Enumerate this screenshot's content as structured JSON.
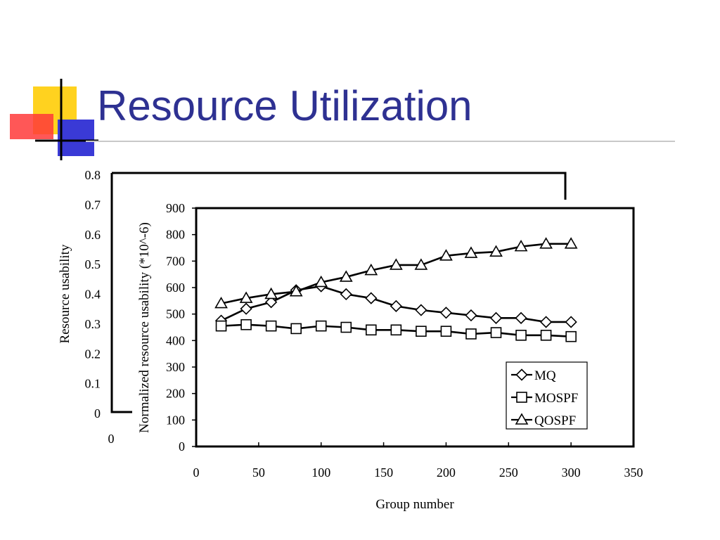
{
  "slide": {
    "title": "Resource Utilization",
    "colors": {
      "title": "#2e3192",
      "deco_yellow": "#ffd21f",
      "deco_red": "#ff3a3a",
      "deco_blue": "#3a3ad6"
    }
  },
  "chart_data": [
    {
      "type": "line",
      "role": "background-frame",
      "ylabel": "Resource usability",
      "ylim": [
        0,
        0.8
      ],
      "yticks": [
        "0",
        "0.1",
        "0.2",
        "0.3",
        "0.4",
        "0.5",
        "0.6",
        "0.7",
        "0.8"
      ],
      "xticks": [
        "0"
      ]
    },
    {
      "type": "line",
      "role": "main",
      "xlabel": "Group number",
      "ylabel": "Normalized resource usability (*10^-6)",
      "xlim": [
        0,
        350
      ],
      "ylim": [
        0,
        900
      ],
      "xticks": [
        "0",
        "50",
        "100",
        "150",
        "200",
        "250",
        "300",
        "350"
      ],
      "yticks": [
        "0",
        "100",
        "200",
        "300",
        "400",
        "500",
        "600",
        "700",
        "800",
        "900"
      ],
      "legend_position": "bottom-right",
      "x": [
        20,
        40,
        60,
        80,
        100,
        120,
        140,
        160,
        180,
        200,
        220,
        240,
        260,
        280,
        300
      ],
      "series": [
        {
          "name": "MQ",
          "marker": "diamond",
          "values": [
            475,
            520,
            545,
            590,
            605,
            575,
            560,
            530,
            515,
            505,
            495,
            485,
            485,
            470,
            470
          ]
        },
        {
          "name": "MOSPF",
          "marker": "square",
          "values": [
            455,
            460,
            455,
            445,
            455,
            450,
            440,
            440,
            435,
            435,
            425,
            430,
            420,
            420,
            415
          ]
        },
        {
          "name": "QOSPF",
          "marker": "triangle",
          "values": [
            540,
            560,
            575,
            585,
            620,
            640,
            665,
            685,
            685,
            720,
            730,
            735,
            755,
            765,
            765
          ]
        }
      ],
      "grid": false
    }
  ]
}
